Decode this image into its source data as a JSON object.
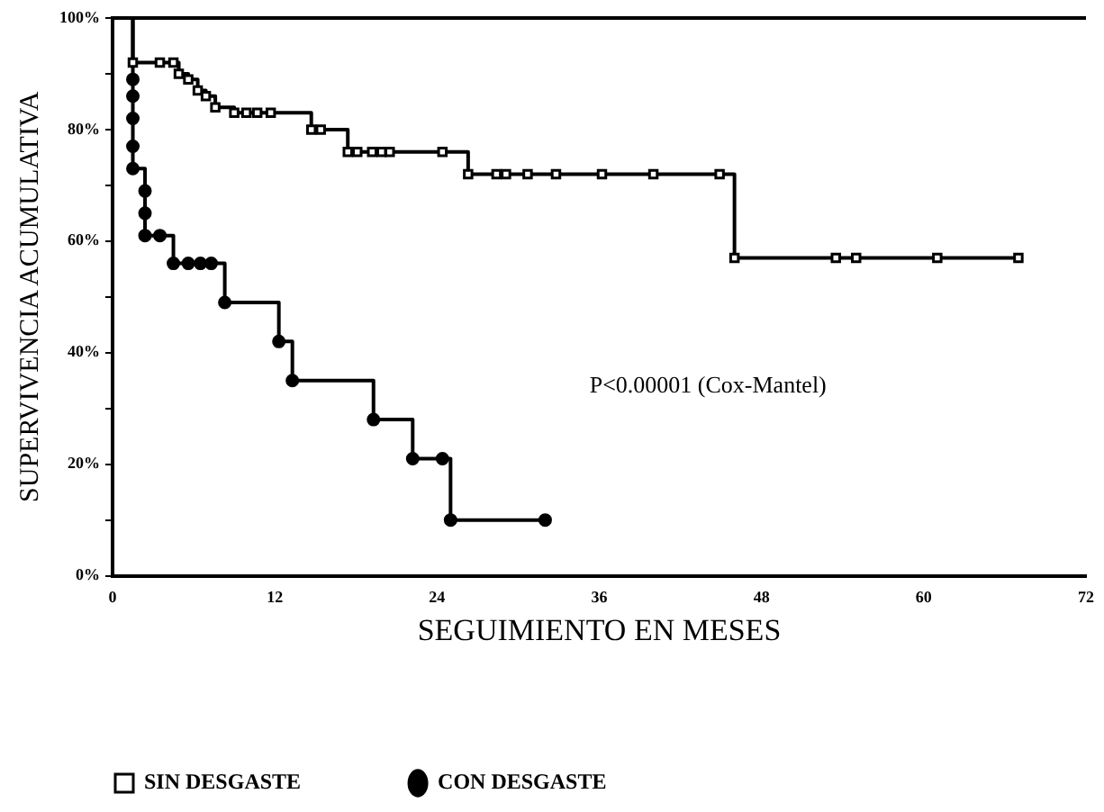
{
  "chart_data": {
    "type": "step",
    "xlabel": "SEGUIMIENTO EN MESES",
    "ylabel": "SUPERVIVENCIA ACUMULATIVA",
    "xlim": [
      0,
      72
    ],
    "xticks": [
      0,
      12,
      24,
      36,
      48,
      60,
      72
    ],
    "ylim": [
      0,
      100
    ],
    "yticks": [
      {
        "value": 0,
        "label": "0%"
      },
      {
        "value": 10,
        "label": null
      },
      {
        "value": 20,
        "label": "20%"
      },
      {
        "value": 30,
        "label": null
      },
      {
        "value": 40,
        "label": "40%"
      },
      {
        "value": 50,
        "label": null
      },
      {
        "value": 60,
        "label": "60%"
      },
      {
        "value": 70,
        "label": null
      },
      {
        "value": 80,
        "label": "80%"
      },
      {
        "value": 90,
        "label": null
      },
      {
        "value": 100,
        "label": "100%"
      }
    ],
    "grid": false,
    "legend": "bottom",
    "annotations": [
      "P<0.00001 (Cox-Mantel)"
    ],
    "series": [
      {
        "name": "SIN DESGASTE",
        "color": "#000000",
        "marker": "square",
        "x": [
          0,
          1.5,
          3.5,
          4.5,
          4.9,
          5.6,
          6.3,
          6.9,
          7.6,
          9,
          9.9,
          10.7,
          11.7,
          14.7,
          15.4,
          17.4,
          18.1,
          19.2,
          19.9,
          20.5,
          24.4,
          26.3,
          28.4,
          29.1,
          30.7,
          32.8,
          36.2,
          40,
          44.9,
          46,
          53.5,
          55,
          61,
          67
        ],
        "values": [
          100,
          92,
          92,
          92,
          90,
          89,
          87,
          86,
          84,
          83,
          83,
          83,
          83,
          80,
          80,
          76,
          76,
          76,
          76,
          76,
          76,
          72,
          72,
          72,
          72,
          72,
          72,
          72,
          72,
          57,
          57,
          57,
          57,
          57
        ]
      },
      {
        "name": "CON DESGASTE",
        "color": "#000000",
        "marker": "circle",
        "x": [
          0,
          1.5,
          1.5,
          1.5,
          1.5,
          1.5,
          2.4,
          2.4,
          2.4,
          3.5,
          4.5,
          5.6,
          6.5,
          7.3,
          8.3,
          12.3,
          13.3,
          19.3,
          22.2,
          24.4,
          25,
          32
        ],
        "values": [
          100,
          89,
          86,
          82,
          77,
          73,
          69,
          65,
          61,
          61,
          56,
          56,
          56,
          56,
          49,
          42,
          35,
          28,
          21,
          21,
          10,
          10
        ]
      }
    ]
  }
}
